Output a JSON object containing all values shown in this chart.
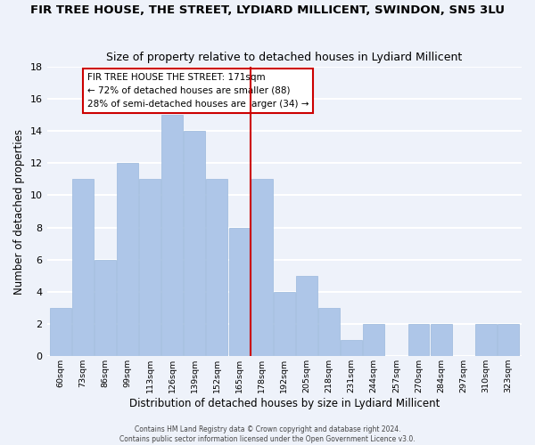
{
  "title": "FIR TREE HOUSE, THE STREET, LYDIARD MILLICENT, SWINDON, SN5 3LU",
  "subtitle": "Size of property relative to detached houses in Lydiard Millicent",
  "xlabel": "Distribution of detached houses by size in Lydiard Millicent",
  "ylabel": "Number of detached properties",
  "bin_labels": [
    "60sqm",
    "73sqm",
    "86sqm",
    "99sqm",
    "113sqm",
    "126sqm",
    "139sqm",
    "152sqm",
    "165sqm",
    "178sqm",
    "192sqm",
    "205sqm",
    "218sqm",
    "231sqm",
    "244sqm",
    "257sqm",
    "270sqm",
    "284sqm",
    "297sqm",
    "310sqm",
    "323sqm"
  ],
  "bar_values": [
    3,
    11,
    6,
    12,
    11,
    15,
    14,
    11,
    8,
    11,
    4,
    5,
    3,
    1,
    2,
    0,
    2,
    2,
    0,
    2,
    2
  ],
  "bar_color": "#aec6e8",
  "bar_edge_color": "#9ab8dc",
  "vline_x": 8.5,
  "vline_color": "#cc0000",
  "annotation_title": "FIR TREE HOUSE THE STREET: 171sqm",
  "annotation_line1": "← 72% of detached houses are smaller (88)",
  "annotation_line2": "28% of semi-detached houses are larger (34) →",
  "annotation_box_color": "#ffffff",
  "annotation_box_edge": "#cc0000",
  "ylim": [
    0,
    18
  ],
  "yticks": [
    0,
    2,
    4,
    6,
    8,
    10,
    12,
    14,
    16,
    18
  ],
  "footer1": "Contains HM Land Registry data © Crown copyright and database right 2024.",
  "footer2": "Contains public sector information licensed under the Open Government Licence v3.0.",
  "background_color": "#eef2fa",
  "grid_color": "#ffffff",
  "title_fontsize": 9.5,
  "subtitle_fontsize": 9.0
}
